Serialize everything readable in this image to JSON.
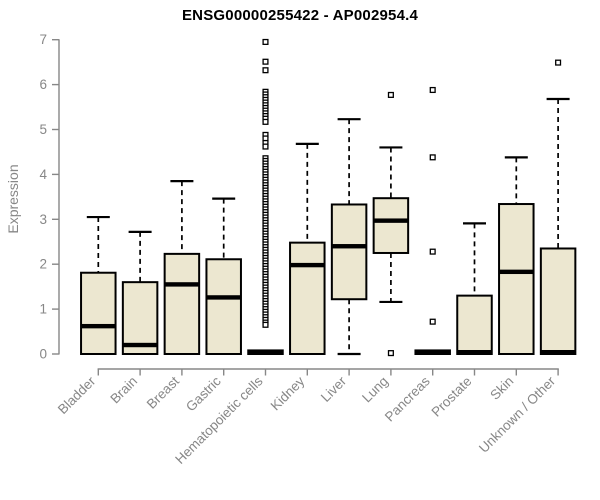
{
  "chart_data": {
    "type": "boxplot",
    "title": "ENSG00000255422 - AP002954.4",
    "ylabel": "Expression",
    "xlabel": "",
    "ylim": [
      0,
      7
    ],
    "yticks": [
      0,
      1,
      2,
      3,
      4,
      5,
      6,
      7
    ],
    "grid": false,
    "legend": "none",
    "box_fill": "#ece7d0",
    "box_border": "#000000",
    "median_color": "#000000",
    "outlier_style": "open-square",
    "axis_color": "#878787",
    "title_color": "#000000",
    "categories": [
      "Bladder",
      "Brain",
      "Breast",
      "Gastric",
      "Hematopoietic cells",
      "Kidney",
      "Liver",
      "Lung",
      "Pancreas",
      "Prostate",
      "Skin",
      "Unknown / Other"
    ],
    "series": [
      {
        "category": "Bladder",
        "slug": "bladder",
        "whisker_low": 0,
        "q1": 0,
        "median": 0.62,
        "q3": 1.81,
        "whisker_high": 3.05,
        "outliers": []
      },
      {
        "category": "Brain",
        "slug": "brain",
        "whisker_low": 0,
        "q1": 0,
        "median": 0.2,
        "q3": 1.6,
        "whisker_high": 2.72,
        "outliers": []
      },
      {
        "category": "Breast",
        "slug": "breast",
        "whisker_low": 0,
        "q1": 0,
        "median": 1.55,
        "q3": 2.23,
        "whisker_high": 3.85,
        "outliers": []
      },
      {
        "category": "Gastric",
        "slug": "gastric",
        "whisker_low": 0,
        "q1": 0,
        "median": 1.26,
        "q3": 2.11,
        "whisker_high": 3.46,
        "outliers": []
      },
      {
        "category": "Hematopoietic cells",
        "slug": "hematopoietic-cells",
        "whisker_low": 0,
        "q1": 0,
        "median": 0.04,
        "q3": 0.08,
        "whisker_high": 0.08,
        "outliers": [
          6.95,
          6.51,
          6.32,
          5.84,
          5.78,
          5.72,
          5.66,
          5.6,
          5.54,
          5.48,
          5.42,
          5.36,
          5.3,
          5.24,
          5.17,
          4.88,
          4.8,
          4.7,
          4.62,
          4.36,
          4.3,
          4.24,
          4.18,
          4.12,
          4.06,
          4.0,
          3.94,
          3.88,
          3.82,
          3.76,
          3.7,
          3.64,
          3.58,
          3.52,
          3.46,
          3.4,
          3.34,
          3.28,
          3.22,
          3.16,
          3.1,
          3.04,
          2.98,
          2.92,
          2.86,
          2.8,
          2.74,
          2.68,
          2.62,
          2.56,
          2.5,
          2.44,
          2.38,
          2.32,
          2.26,
          2.2,
          2.14,
          2.08,
          2.02,
          1.96,
          1.9,
          1.84,
          1.78,
          1.72,
          1.66,
          1.6,
          1.54,
          1.48,
          1.42,
          1.36,
          1.3,
          1.24,
          1.18,
          1.12,
          1.06,
          1.0,
          0.94,
          0.88,
          0.82,
          0.76,
          0.7,
          0.65
        ]
      },
      {
        "category": "Kidney",
        "slug": "kidney",
        "whisker_low": 0,
        "q1": 0,
        "median": 1.98,
        "q3": 2.48,
        "whisker_high": 4.68,
        "outliers": []
      },
      {
        "category": "Liver",
        "slug": "liver",
        "whisker_low": 0,
        "q1": 1.22,
        "median": 2.4,
        "q3": 3.33,
        "whisker_high": 5.23,
        "outliers": []
      },
      {
        "category": "Lung",
        "slug": "lung",
        "whisker_low": 1.16,
        "q1": 2.25,
        "median": 2.97,
        "q3": 3.47,
        "whisker_high": 4.6,
        "outliers": [
          5.77,
          0.02
        ]
      },
      {
        "category": "Pancreas",
        "slug": "pancreas",
        "whisker_low": 0,
        "q1": 0,
        "median": 0.04,
        "q3": 0.08,
        "whisker_high": 0.08,
        "outliers": [
          5.88,
          4.38,
          2.28,
          0.72
        ]
      },
      {
        "category": "Prostate",
        "slug": "prostate",
        "whisker_low": 0,
        "q1": 0,
        "median": 0.04,
        "q3": 1.3,
        "whisker_high": 2.91,
        "outliers": []
      },
      {
        "category": "Skin",
        "slug": "skin",
        "whisker_low": 0,
        "q1": 0,
        "median": 1.83,
        "q3": 3.34,
        "whisker_high": 4.38,
        "outliers": []
      },
      {
        "category": "Unknown / Other",
        "slug": "unknown-other",
        "whisker_low": 0,
        "q1": 0,
        "median": 0.04,
        "q3": 2.35,
        "whisker_high": 5.68,
        "outliers": [
          6.49
        ]
      }
    ]
  }
}
